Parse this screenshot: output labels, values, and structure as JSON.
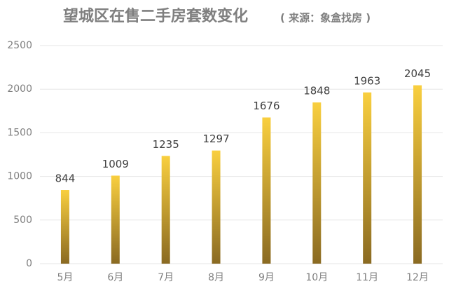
{
  "chart_data": {
    "type": "bar",
    "title": "望城区在售二手房套数变化",
    "subtitle": "( 来源：象盒找房 )",
    "categories": [
      "5月",
      "6月",
      "7月",
      "8月",
      "9月",
      "10月",
      "11月",
      "12月"
    ],
    "values": [
      844,
      1009,
      1235,
      1297,
      1676,
      1848,
      1963,
      2045
    ],
    "color": "#f9cf3f",
    "ylim": [
      0,
      2500
    ],
    "yticks": [
      0,
      500,
      1000,
      1500,
      2000,
      2500
    ],
    "grid": true
  }
}
